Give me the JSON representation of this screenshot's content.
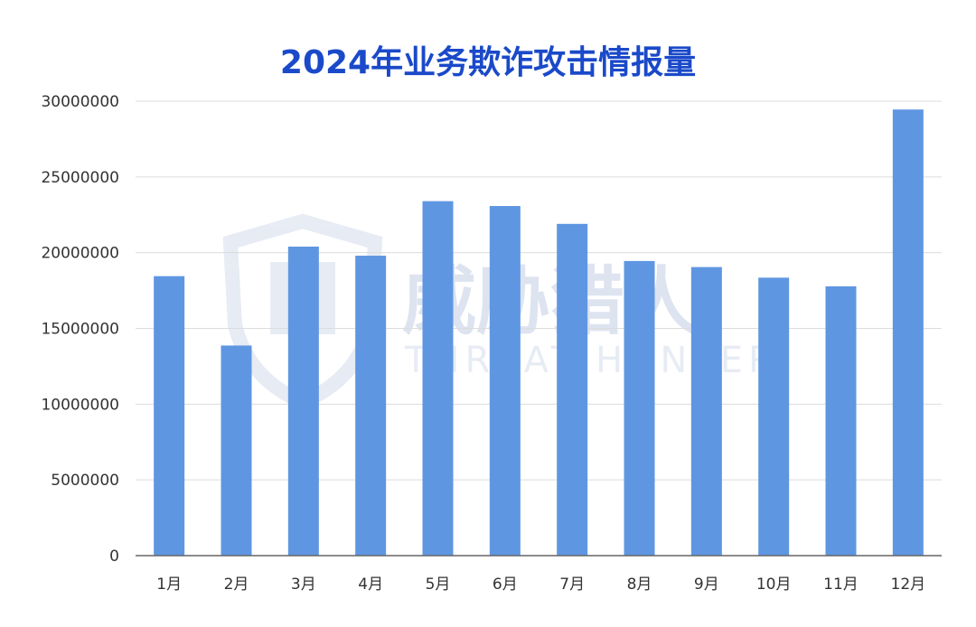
{
  "watermark": {
    "cn": "威胁猎人",
    "en": "THREAT HUNTER"
  },
  "chart_data": {
    "type": "bar",
    "title": "2024年业务欺诈攻击情报量",
    "categories": [
      "1月",
      "2月",
      "3月",
      "4月",
      "5月",
      "6月",
      "7月",
      "8月",
      "9月",
      "10月",
      "11月",
      "12月"
    ],
    "values": [
      18450000,
      13870000,
      20400000,
      19800000,
      23400000,
      23080000,
      21900000,
      19450000,
      19050000,
      18350000,
      17780000,
      29450000
    ],
    "ylim": [
      0,
      30000000
    ],
    "yticks": [
      "0",
      "5000000",
      "10000000",
      "15000000",
      "20000000",
      "25000000",
      "30000000"
    ],
    "grid": true,
    "bar_color": "#5f96e2",
    "title_color": "#1a49c9"
  }
}
